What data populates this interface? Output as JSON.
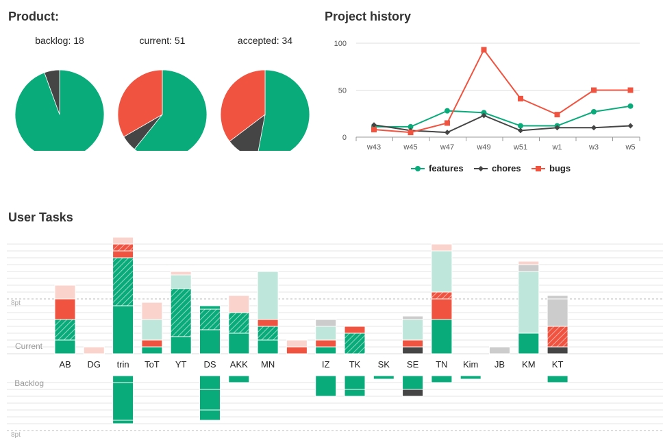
{
  "colors": {
    "features": "#0aab7b",
    "features_light": "#bfe6da",
    "chores": "#454545",
    "chores_light": "#cccccc",
    "bugs": "#f05340",
    "bugs_light": "#fbd3cd",
    "grid": "#e4e4e4",
    "axis_text": "#555555"
  },
  "product": {
    "title": "Product:",
    "pies": [
      {
        "label": "backlog: 18",
        "slices": [
          {
            "name": "features",
            "value": 17
          },
          {
            "name": "chores",
            "value": 1
          }
        ]
      },
      {
        "label": "current: 51",
        "slices": [
          {
            "name": "features",
            "value": 31
          },
          {
            "name": "chores",
            "value": 3
          },
          {
            "name": "bugs",
            "value": 17
          }
        ]
      },
      {
        "label": "accepted: 34",
        "slices": [
          {
            "name": "features",
            "value": 18
          },
          {
            "name": "chores",
            "value": 4
          },
          {
            "name": "bugs",
            "value": 12
          }
        ]
      }
    ]
  },
  "history": {
    "title": "Project history"
  },
  "chart_data": [
    {
      "type": "pie",
      "title": "backlog: 18",
      "categories": [
        "features",
        "chores"
      ],
      "values": [
        17,
        1
      ]
    },
    {
      "type": "pie",
      "title": "current: 51",
      "categories": [
        "features",
        "chores",
        "bugs"
      ],
      "values": [
        31,
        3,
        17
      ]
    },
    {
      "type": "pie",
      "title": "accepted: 34",
      "categories": [
        "features",
        "chores",
        "bugs"
      ],
      "values": [
        18,
        4,
        12
      ]
    },
    {
      "type": "line",
      "title": "Project history",
      "x": [
        "w43",
        "w45",
        "w47",
        "w49",
        "w51",
        "w1",
        "w3",
        "w5"
      ],
      "yticks": [
        0,
        50,
        100
      ],
      "ylim": [
        0,
        100
      ],
      "legend": "bottom",
      "series": [
        {
          "name": "features",
          "marker": "circle",
          "values": [
            11,
            11,
            28,
            26,
            12,
            12,
            27,
            33
          ]
        },
        {
          "name": "chores",
          "marker": "diamond",
          "values": [
            13,
            7,
            5,
            23,
            7,
            10,
            10,
            12
          ]
        },
        {
          "name": "bugs",
          "marker": "square",
          "values": [
            8,
            5,
            15,
            93,
            41,
            24,
            50,
            50
          ]
        }
      ]
    },
    {
      "type": "bar",
      "title": "User Tasks",
      "unit": "pt",
      "reference_line": {
        "value": 8,
        "label": "8pt"
      },
      "row_labels": {
        "current": "Current",
        "backlog": "Backlog"
      },
      "categories": [
        "AB",
        "DG",
        "trin",
        "ToT",
        "YT",
        "DS",
        "AKK",
        "MN",
        "",
        "IZ",
        "TK",
        "SK",
        "SE",
        "TN",
        "Kim",
        "JB",
        "KM",
        "KT"
      ],
      "current": [
        [
          {
            "t": "features",
            "s": "solid",
            "v": 2
          },
          {
            "t": "features",
            "s": "hatch",
            "v": 3
          },
          {
            "t": "bugs",
            "s": "solid",
            "v": 3
          },
          {
            "t": "bugs",
            "s": "light",
            "v": 2
          }
        ],
        [
          {
            "t": "bugs",
            "s": "light",
            "v": 1
          }
        ],
        [
          {
            "t": "features",
            "s": "solid",
            "v": 7
          },
          {
            "t": "features",
            "s": "hatch",
            "v": 7
          },
          {
            "t": "bugs",
            "s": "solid",
            "v": 1
          },
          {
            "t": "bugs",
            "s": "hatch",
            "v": 1
          },
          {
            "t": "bugs",
            "s": "light",
            "v": 1
          }
        ],
        [
          {
            "t": "features",
            "s": "solid",
            "v": 1
          },
          {
            "t": "bugs",
            "s": "solid",
            "v": 1
          },
          {
            "t": "features",
            "s": "light",
            "v": 3
          },
          {
            "t": "bugs",
            "s": "light",
            "v": 2.5
          }
        ],
        [
          {
            "t": "features",
            "s": "solid",
            "v": 2.5
          },
          {
            "t": "features",
            "s": "hatch",
            "v": 7
          },
          {
            "t": "features",
            "s": "light",
            "v": 2
          },
          {
            "t": "bugs",
            "s": "light",
            "v": 0.5
          }
        ],
        [
          {
            "t": "features",
            "s": "solid",
            "v": 3.5
          },
          {
            "t": "features",
            "s": "hatch",
            "v": 3
          },
          {
            "t": "features",
            "s": "solid",
            "v": 0.5
          }
        ],
        [
          {
            "t": "features",
            "s": "solid",
            "v": 3
          },
          {
            "t": "features",
            "s": "hatch",
            "v": 3
          },
          {
            "t": "bugs",
            "s": "light",
            "v": 2.5
          }
        ],
        [
          {
            "t": "features",
            "s": "solid",
            "v": 2
          },
          {
            "t": "features",
            "s": "hatch",
            "v": 2
          },
          {
            "t": "bugs",
            "s": "solid",
            "v": 1
          },
          {
            "t": "features",
            "s": "light",
            "v": 7
          }
        ],
        [
          {
            "t": "bugs",
            "s": "solid",
            "v": 1
          },
          {
            "t": "bugs",
            "s": "light",
            "v": 1
          }
        ],
        [
          {
            "t": "features",
            "s": "solid",
            "v": 1
          },
          {
            "t": "bugs",
            "s": "solid",
            "v": 1
          },
          {
            "t": "features",
            "s": "light",
            "v": 2
          },
          {
            "t": "chores",
            "s": "light",
            "v": 1
          }
        ],
        [
          {
            "t": "features",
            "s": "hatch",
            "v": 3
          },
          {
            "t": "bugs",
            "s": "solid",
            "v": 1
          }
        ],
        [],
        [
          {
            "t": "chores",
            "s": "solid",
            "v": 1
          },
          {
            "t": "bugs",
            "s": "solid",
            "v": 1
          },
          {
            "t": "features",
            "s": "light",
            "v": 3
          },
          {
            "t": "chores",
            "s": "light",
            "v": 0.5
          }
        ],
        [
          {
            "t": "features",
            "s": "solid",
            "v": 5
          },
          {
            "t": "bugs",
            "s": "solid",
            "v": 3
          },
          {
            "t": "bugs",
            "s": "hatch",
            "v": 1
          },
          {
            "t": "features",
            "s": "light",
            "v": 6
          },
          {
            "t": "bugs",
            "s": "light",
            "v": 1
          }
        ],
        [],
        [
          {
            "t": "chores",
            "s": "light",
            "v": 1
          }
        ],
        [
          {
            "t": "features",
            "s": "solid",
            "v": 3
          },
          {
            "t": "features",
            "s": "light",
            "v": 9
          },
          {
            "t": "chores",
            "s": "light",
            "v": 1
          },
          {
            "t": "bugs",
            "s": "light",
            "v": 0.5
          }
        ],
        [
          {
            "t": "chores",
            "s": "solid",
            "v": 1
          },
          {
            "t": "bugs",
            "s": "hatch",
            "v": 3
          },
          {
            "t": "chores",
            "s": "light",
            "v": 4
          },
          {
            "t": "chores",
            "s": "light",
            "v": 0.5
          }
        ]
      ],
      "backlog": [
        [
          {
            "t": "features",
            "s": "solid",
            "v": 0
          }
        ],
        [
          {
            "t": "features",
            "s": "solid",
            "v": 0
          }
        ],
        [
          {
            "t": "features",
            "s": "solid",
            "v": 1
          },
          {
            "t": "features",
            "s": "solid",
            "v": 5.5
          },
          {
            "t": "features",
            "s": "solid",
            "v": 0.5
          }
        ],
        [
          {
            "t": "features",
            "s": "solid",
            "v": 0
          }
        ],
        [
          {
            "t": "features",
            "s": "solid",
            "v": 0
          }
        ],
        [
          {
            "t": "features",
            "s": "solid",
            "v": 2
          },
          {
            "t": "features",
            "s": "solid",
            "v": 3
          },
          {
            "t": "features",
            "s": "solid",
            "v": 1.5
          }
        ],
        [
          {
            "t": "features",
            "s": "solid",
            "v": 1
          }
        ],
        [
          {
            "t": "features",
            "s": "solid",
            "v": 0
          }
        ],
        [
          {
            "t": "features",
            "s": "solid",
            "v": 0
          }
        ],
        [
          {
            "t": "features",
            "s": "solid",
            "v": 3
          }
        ],
        [
          {
            "t": "features",
            "s": "solid",
            "v": 2
          },
          {
            "t": "features",
            "s": "solid",
            "v": 1
          }
        ],
        [
          {
            "t": "features",
            "s": "solid",
            "v": 0.5
          }
        ],
        [
          {
            "t": "features",
            "s": "solid",
            "v": 2
          },
          {
            "t": "chores",
            "s": "solid",
            "v": 1
          }
        ],
        [
          {
            "t": "features",
            "s": "solid",
            "v": 1
          }
        ],
        [
          {
            "t": "features",
            "s": "solid",
            "v": 0.5
          }
        ],
        [
          {
            "t": "features",
            "s": "solid",
            "v": 0
          }
        ],
        [
          {
            "t": "features",
            "s": "solid",
            "v": 0
          }
        ],
        [
          {
            "t": "features",
            "s": "solid",
            "v": 1
          }
        ]
      ]
    }
  ]
}
